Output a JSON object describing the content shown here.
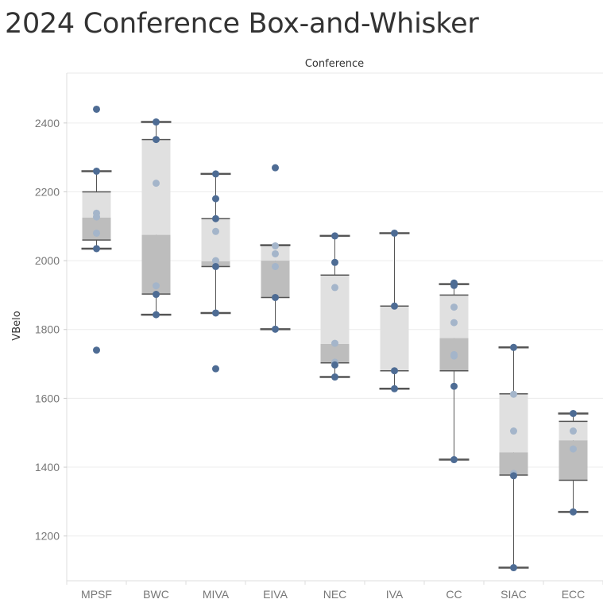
{
  "title": "2024 Conference Box-and-Whisker",
  "chart_data": {
    "type": "box",
    "title": "2024 Conference Box-and-Whisker",
    "column_header": "Conference",
    "xlabel": "",
    "ylabel": "VBelo",
    "ylim": [
      1070,
      2545
    ],
    "yticks": [
      1200,
      1400,
      1600,
      1800,
      2000,
      2200,
      2400
    ],
    "grid": true,
    "legend": "none",
    "colors": {
      "box_upper": "#e0e0e0",
      "box_lower": "#bdbdbd",
      "point": "#4e6c94",
      "point_faded": "#a4b5ca",
      "whisker": "#555555",
      "grid": "#ececec"
    },
    "categories": [
      "MPSF",
      "BWC",
      "MIVA",
      "EIVA",
      "NEC",
      "IVA",
      "CC",
      "SIAC",
      "ECC"
    ],
    "boxes": [
      {
        "category": "MPSF",
        "whisker_low": 2035,
        "q1": 2060,
        "median": 2125,
        "q3": 2200,
        "whisker_high": 2260,
        "points": [
          2440,
          2260,
          2138,
          2127,
          2080,
          2035,
          1740
        ]
      },
      {
        "category": "BWC",
        "whisker_low": 1843,
        "q1": 1903,
        "median": 2075,
        "q3": 2352,
        "whisker_high": 2403,
        "points": [
          2403,
          2352,
          2225,
          1927,
          1902,
          1843
        ]
      },
      {
        "category": "MIVA",
        "whisker_low": 1848,
        "q1": 1983,
        "median": 1998,
        "q3": 2122,
        "whisker_high": 2252,
        "points": [
          2252,
          2180,
          2122,
          2085,
          2000,
          1983,
          1848,
          1686
        ]
      },
      {
        "category": "EIVA",
        "whisker_low": 1801,
        "q1": 1893,
        "median": 2000,
        "q3": 2045,
        "whisker_high": 2045,
        "points": [
          2270,
          2043,
          2020,
          1983,
          1893,
          1801
        ]
      },
      {
        "category": "NEC",
        "whisker_low": 1662,
        "q1": 1703,
        "median": 1758,
        "q3": 1958,
        "whisker_high": 2072,
        "points": [
          2072,
          1995,
          1922,
          1760,
          1705,
          1697,
          1662
        ]
      },
      {
        "category": "IVA",
        "whisker_low": 1628,
        "q1": 1680,
        "median": 1680,
        "q3": 1868,
        "whisker_high": 2080,
        "points": [
          2080,
          1868,
          1680,
          1628
        ]
      },
      {
        "category": "CC",
        "whisker_low": 1422,
        "q1": 1680,
        "median": 1775,
        "q3": 1900,
        "whisker_high": 1932,
        "points": [
          1935,
          1928,
          1865,
          1820,
          1727,
          1723,
          1635,
          1422
        ]
      },
      {
        "category": "SIAC",
        "whisker_low": 1108,
        "q1": 1377,
        "median": 1443,
        "q3": 1613,
        "whisker_high": 1748,
        "points": [
          1748,
          1612,
          1505,
          1382,
          1375,
          1108
        ]
      },
      {
        "category": "ECC",
        "whisker_low": 1270,
        "q1": 1362,
        "median": 1478,
        "q3": 1533,
        "whisker_high": 1556,
        "points": [
          1556,
          1505,
          1453,
          1270
        ]
      }
    ]
  }
}
